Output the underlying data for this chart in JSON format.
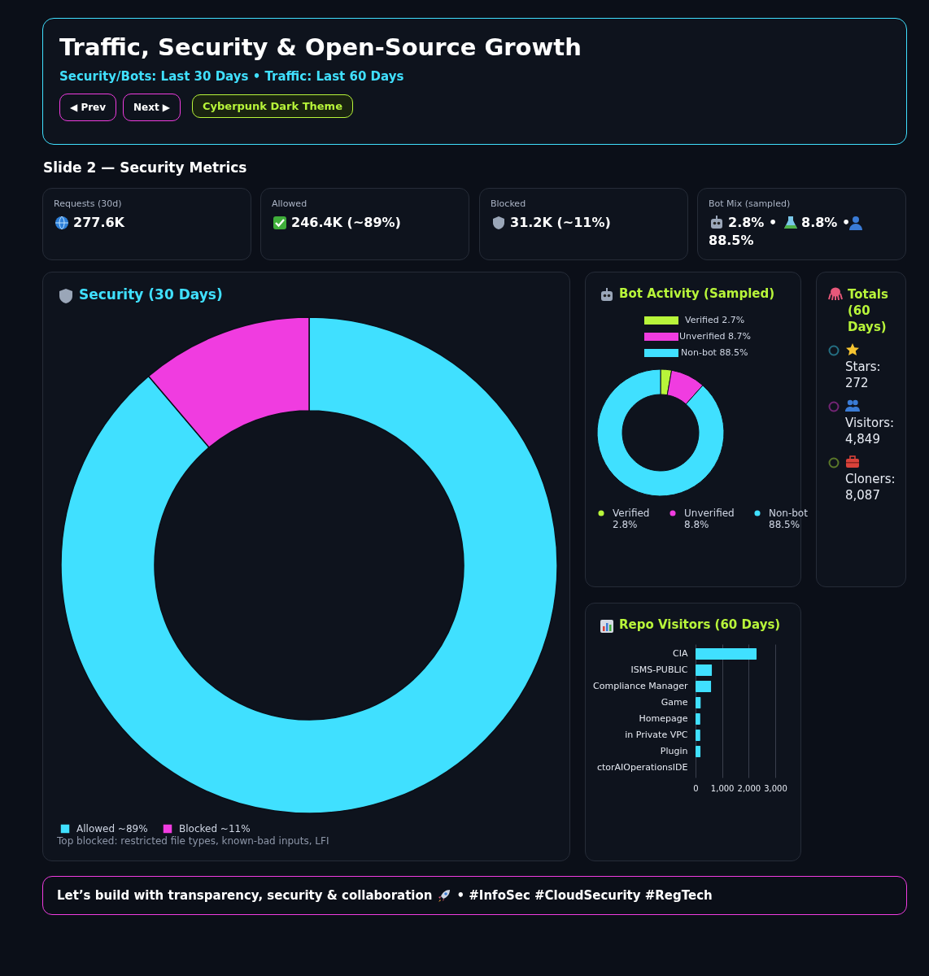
{
  "chart_data": [
    {
      "type": "other",
      "title": "Traffic, Security & Open-Source Growth",
      "subtitle": "Security/Bots: Last 30 Days • Traffic: Last 60 Days",
      "annotations": [
        "◀ Prev",
        "Next ▶",
        "Cyberpunk Dark Theme",
        "Slide 2 — Security Metrics"
      ]
    },
    {
      "type": "other",
      "annotations": [
        "Requests (30d)",
        "277.6K",
        "Allowed",
        "246.4K (~89%)",
        "Blocked",
        "31.2K (~11%)",
        "Bot Mix (sampled)",
        "2.8% •",
        "8.8% •",
        "88.5%"
      ]
    },
    {
      "type": "donut",
      "title": "Security (30 Days)",
      "categories": [
        "Allowed",
        "Blocked"
      ],
      "values": [
        88.8,
        11.2
      ],
      "colors": [
        "#40e0ff",
        "#f03ce0"
      ],
      "value_labels": [
        "~89%",
        "~11%"
      ],
      "legend": "bottom left",
      "annotations": [
        "Top blocked: restricted file types, known-bad inputs, LFI"
      ]
    },
    {
      "type": "donut",
      "title": "Bot Activity (Sampled)",
      "categories": [
        "Verified",
        "Unverified",
        "Non-bot"
      ],
      "values": [
        2.8,
        8.8,
        88.5
      ],
      "colors": [
        "#b8f53a",
        "#f03ce0",
        "#40e0ff"
      ],
      "value_labels": [
        "2.8%",
        "8.8%",
        "88.5%"
      ],
      "legend": "bottom",
      "annotations": [
        "Verified 2.7%",
        "Unverified 8.7%",
        "Non-bot 88.5%"
      ]
    },
    {
      "type": "other",
      "title": "Totals (60 Days)",
      "annotations": [
        "Stars:",
        "272",
        "Visitors:",
        "4,849",
        "Cloners:",
        "8,087"
      ]
    },
    {
      "type": "bar",
      "orientation": "horizontal",
      "title": "Repo Visitors (60 Days)",
      "categories": [
        "CIA",
        "ISMS-PUBLIC",
        "Compliance Manager",
        "Game",
        "Homepage",
        "in Private VPC",
        "Plugin",
        "ctorAIOperationsIDE"
      ],
      "values": [
        2300,
        620,
        590,
        200,
        180,
        180,
        190,
        0
      ],
      "color": "#40e0ff",
      "xlim": [
        0,
        3000
      ],
      "xticks": [
        0,
        {
          "value": 1000,
          "label": "1,000"
        },
        {
          "value": 2000,
          "label": "2,000"
        },
        {
          "value": 3000,
          "label": "3,000"
        }
      ],
      "grid": "x"
    },
    {
      "type": "other",
      "annotations": [
        "Let’s build with transparency, security & collaboration",
        "• #InfoSec #CloudSecurity #RegTech"
      ]
    }
  ]
}
